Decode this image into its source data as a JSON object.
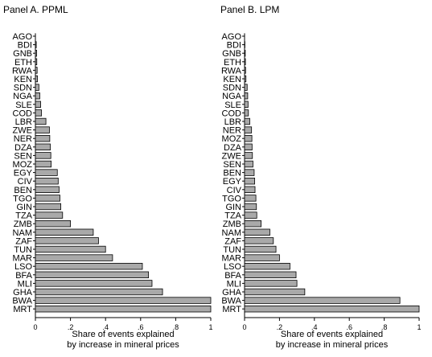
{
  "chart_data": [
    {
      "type": "bar",
      "orientation": "horizontal",
      "title": "Panel A. PPML",
      "xlabel": [
        "Share of events explained",
        "by increase in mineral prices"
      ],
      "xlim": [
        0,
        1
      ],
      "xticks": [
        "0",
        ".2",
        ".4",
        ".6",
        ".8",
        "1"
      ],
      "bar_color": "#a9a9a9",
      "categories": [
        "AGO",
        "BDI",
        "GNB",
        "ETH",
        "RWA",
        "KEN",
        "SDN",
        "NGA",
        "SLE",
        "COD",
        "LBR",
        "ZWE",
        "NER",
        "DZA",
        "SEN",
        "MOZ",
        "EGY",
        "CIV",
        "BEN",
        "TGO",
        "GIN",
        "TZA",
        "ZMB",
        "NAM",
        "ZAF",
        "TUN",
        "MAR",
        "LSO",
        "BFA",
        "MLI",
        "GHA",
        "BWA",
        "MRT"
      ],
      "values": [
        0.0,
        0.005,
        0.007,
        0.008,
        0.01,
        0.012,
        0.02,
        0.025,
        0.03,
        0.035,
        0.06,
        0.08,
        0.082,
        0.085,
        0.088,
        0.09,
        0.125,
        0.13,
        0.135,
        0.14,
        0.145,
        0.155,
        0.2,
        0.33,
        0.36,
        0.4,
        0.44,
        0.61,
        0.645,
        0.665,
        0.725,
        1.0,
        1.0
      ]
    },
    {
      "type": "bar",
      "orientation": "horizontal",
      "title": "Panel B. LPM",
      "xlabel": [
        "Share of events explained",
        "by increase in mineral prices"
      ],
      "xlim": [
        0,
        1
      ],
      "xticks": [
        "0",
        ".2",
        ".4",
        ".6",
        ".8",
        "1"
      ],
      "bar_color": "#a9a9a9",
      "categories": [
        "AGO",
        "BDI",
        "GNB",
        "ETH",
        "RWA",
        "KEN",
        "SDN",
        "NGA",
        "SLE",
        "COD",
        "LBR",
        "NER",
        "MOZ",
        "DZA",
        "ZWE",
        "SEN",
        "BEN",
        "EGY",
        "CIV",
        "TGO",
        "GIN",
        "TZA",
        "ZMB",
        "NAM",
        "ZAF",
        "TUN",
        "MAR",
        "LSO",
        "BFA",
        "MLI",
        "GHA",
        "BWA",
        "MRT"
      ],
      "values": [
        0.0,
        0.002,
        0.004,
        0.005,
        0.006,
        0.008,
        0.015,
        0.018,
        0.02,
        0.022,
        0.03,
        0.04,
        0.042,
        0.043,
        0.045,
        0.048,
        0.055,
        0.058,
        0.06,
        0.065,
        0.068,
        0.07,
        0.095,
        0.145,
        0.165,
        0.18,
        0.2,
        0.26,
        0.295,
        0.3,
        0.345,
        0.89,
        1.0
      ]
    }
  ]
}
